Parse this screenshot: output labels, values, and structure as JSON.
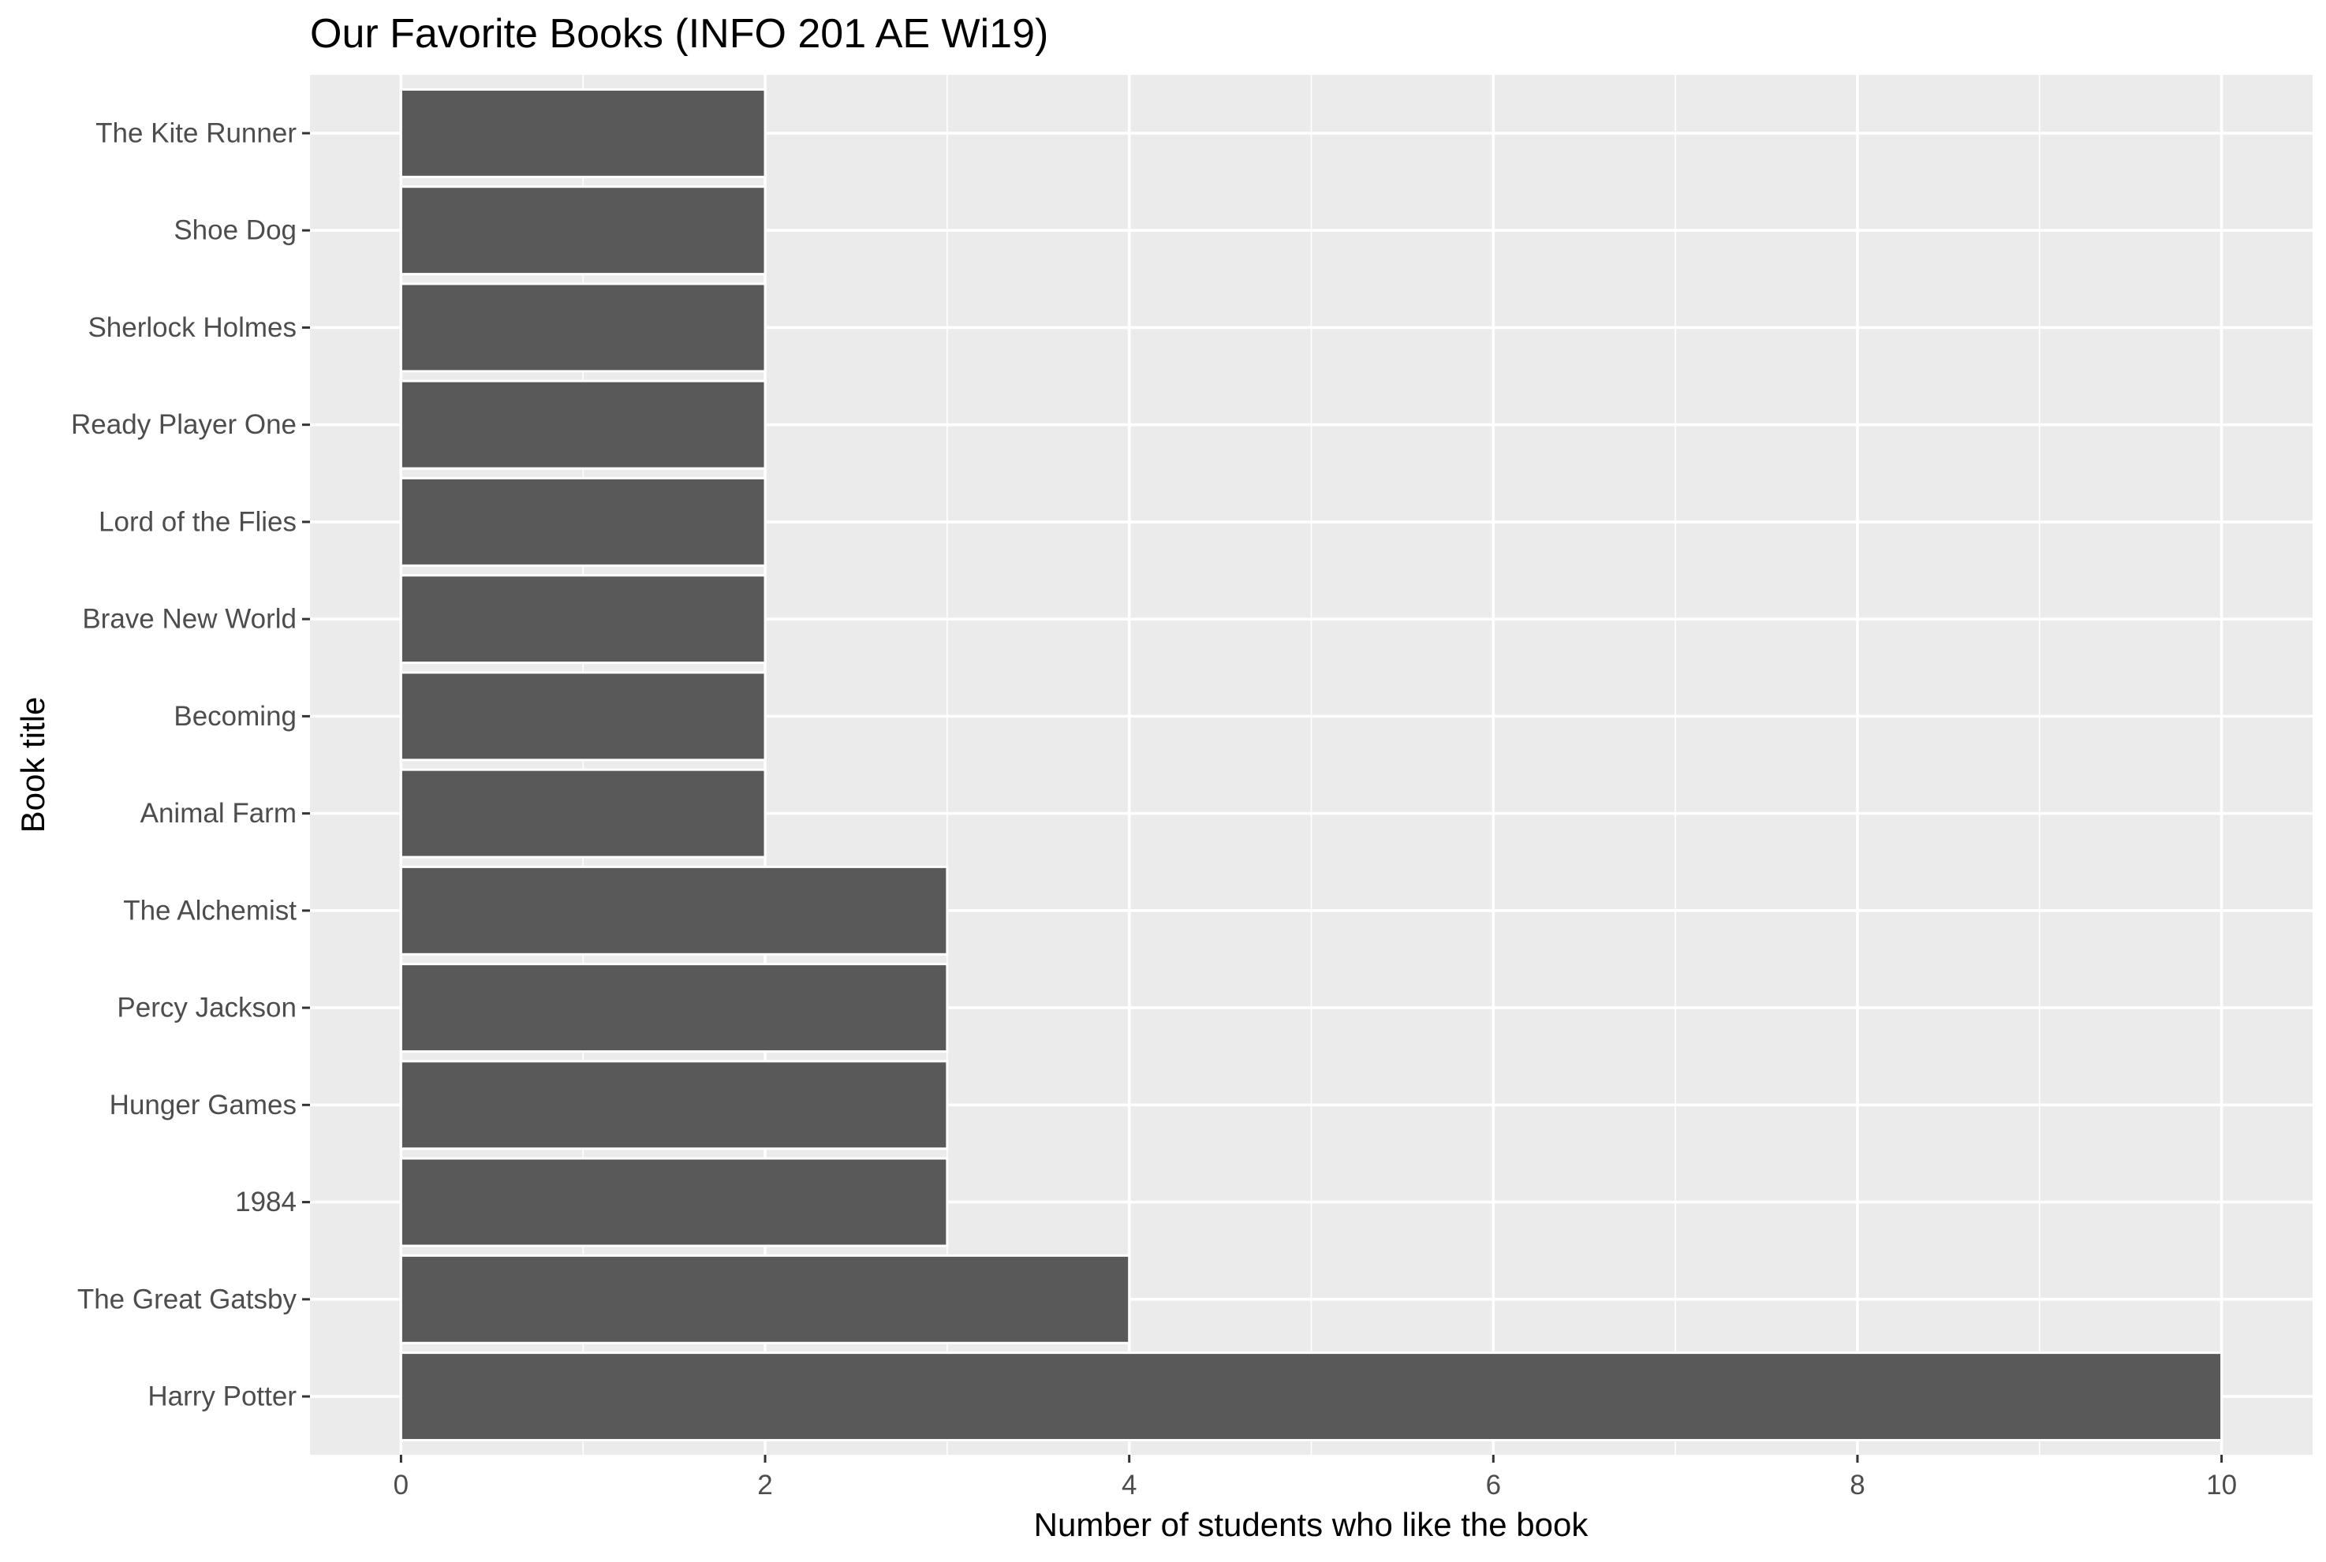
{
  "chart_data": {
    "type": "bar",
    "orientation": "horizontal",
    "title": "Our Favorite Books (INFO 201 AE Wi19)",
    "xlabel": "Number of students who like the book",
    "ylabel": "Book title",
    "categories": [
      "Harry Potter",
      "The Great Gatsby",
      "1984",
      "Hunger Games",
      "Percy Jackson",
      "The Alchemist",
      "Animal Farm",
      "Becoming",
      "Brave New World",
      "Lord of the Flies",
      "Ready Player One",
      "Sherlock Holmes",
      "Shoe Dog",
      "The Kite Runner"
    ],
    "values": [
      10,
      4,
      3,
      3,
      3,
      3,
      2,
      2,
      2,
      2,
      2,
      2,
      2,
      2
    ],
    "xlim": [
      -0.5,
      10.5
    ],
    "xticks": [
      0,
      2,
      4,
      6,
      8,
      10
    ],
    "xtick_labels": [
      "0",
      "2",
      "4",
      "6",
      "8",
      "10"
    ],
    "grid": true,
    "colors": {
      "panel_background": "#ebebeb",
      "grid_major": "#ffffff",
      "bar_fill": "#595959",
      "bar_outline": "#ffffff",
      "tick_label": "#4d4d4d",
      "axis_tick": "#333333"
    }
  }
}
